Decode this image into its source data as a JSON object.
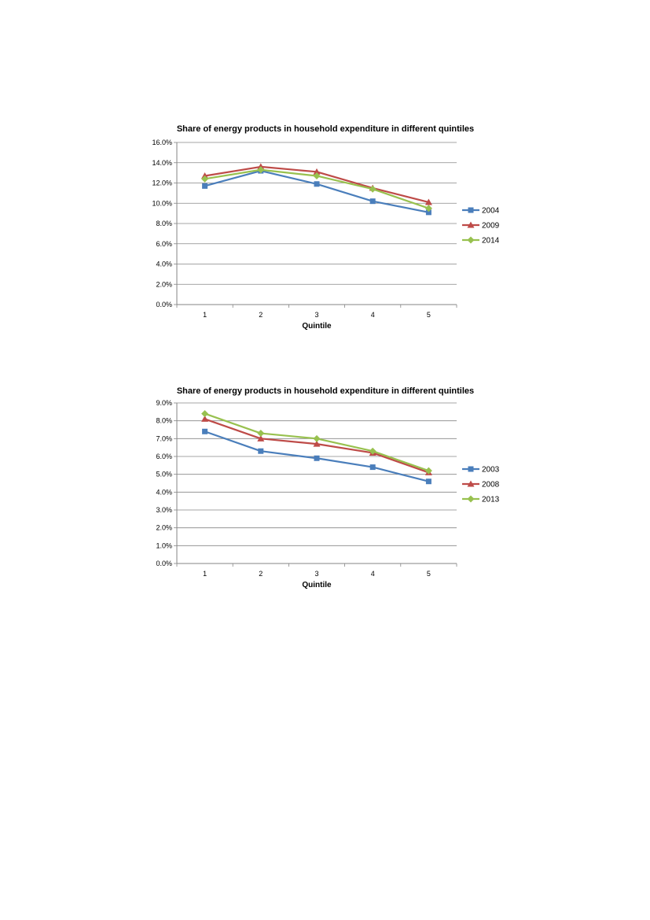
{
  "chart_data": [
    {
      "type": "line",
      "title": "Share of energy products in household expenditure in different quintiles",
      "xlabel": "Quintile",
      "ylabel": "",
      "categories": [
        "1",
        "2",
        "3",
        "4",
        "5"
      ],
      "ylim": [
        0,
        0.16
      ],
      "ytick_values": [
        0,
        0.02,
        0.04,
        0.06,
        0.08,
        0.1,
        0.12,
        0.14,
        0.16
      ],
      "ytick_labels": [
        "0.0%",
        "2.0%",
        "4.0%",
        "6.0%",
        "8.0%",
        "10.0%",
        "12.0%",
        "14.0%",
        "16.0%"
      ],
      "grid": true,
      "legend_position": "right",
      "series": [
        {
          "name": "2004",
          "color": "#4a7ebb",
          "marker": "square",
          "values": [
            0.117,
            0.132,
            0.119,
            0.102,
            0.091
          ]
        },
        {
          "name": "2009",
          "color": "#be4b48",
          "marker": "triangle",
          "values": [
            0.127,
            0.136,
            0.131,
            0.115,
            0.101
          ]
        },
        {
          "name": "2014",
          "color": "#98c14f",
          "marker": "diamond",
          "values": [
            0.124,
            0.133,
            0.127,
            0.114,
            0.095
          ]
        }
      ]
    },
    {
      "type": "line",
      "title": "Share of energy products in household expenditure in different quintiles",
      "xlabel": "Quintile",
      "ylabel": "",
      "categories": [
        "1",
        "2",
        "3",
        "4",
        "5"
      ],
      "ylim": [
        0,
        0.09
      ],
      "ytick_values": [
        0,
        0.01,
        0.02,
        0.03,
        0.04,
        0.05,
        0.06,
        0.07,
        0.08,
        0.09
      ],
      "ytick_labels": [
        "0.0%",
        "1.0%",
        "2.0%",
        "3.0%",
        "4.0%",
        "5.0%",
        "6.0%",
        "7.0%",
        "8.0%",
        "9.0%"
      ],
      "grid": true,
      "legend_position": "right",
      "series": [
        {
          "name": "2003",
          "color": "#4a7ebb",
          "marker": "square",
          "values": [
            0.074,
            0.063,
            0.059,
            0.054,
            0.046
          ]
        },
        {
          "name": "2008",
          "color": "#be4b48",
          "marker": "triangle",
          "values": [
            0.081,
            0.07,
            0.067,
            0.062,
            0.051
          ]
        },
        {
          "name": "2013",
          "color": "#98c14f",
          "marker": "diamond",
          "values": [
            0.084,
            0.073,
            0.07,
            0.063,
            0.052
          ]
        }
      ]
    }
  ]
}
